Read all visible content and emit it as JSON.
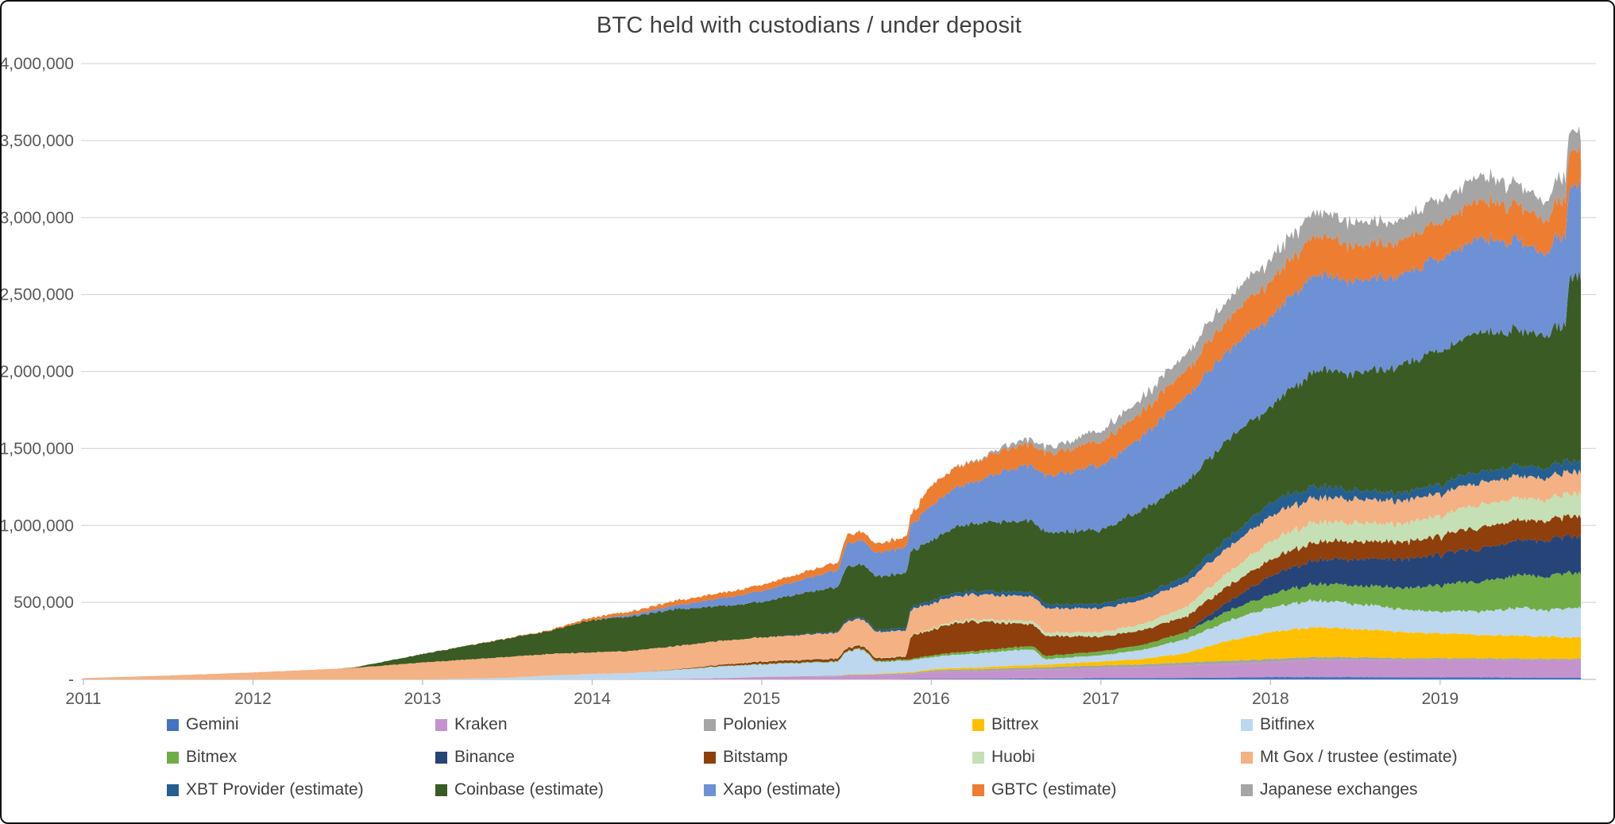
{
  "title": "BTC held with custodians / under deposit",
  "chart_data": {
    "type": "area",
    "stacked": true,
    "title": "BTC held with custodians / under deposit",
    "unit": "BTC (values stored in thousands of BTC)",
    "grid": true,
    "legend_position": "bottom",
    "legend_columns": 5,
    "xlabel": "",
    "ylabel": "",
    "xlim": [
      2011.0,
      2019.83
    ],
    "ylim": [
      0,
      4000000
    ],
    "x_ticks": [
      "2011",
      "2012",
      "2013",
      "2014",
      "2015",
      "2016",
      "2017",
      "2018",
      "2019"
    ],
    "x_tick_values": [
      2011,
      2012,
      2013,
      2014,
      2015,
      2016,
      2017,
      2018,
      2019
    ],
    "y_ticks": [
      {
        "value": 0,
        "label": "-"
      },
      {
        "value": 500,
        "label": "500,000"
      },
      {
        "value": 1000,
        "label": "1,000,000"
      },
      {
        "value": 1500,
        "label": "1,500,000"
      },
      {
        "value": 2000,
        "label": "2,000,000"
      },
      {
        "value": 2500,
        "label": "2,500,000"
      },
      {
        "value": 3000,
        "label": "3,000,000"
      },
      {
        "value": 3500,
        "label": "3,500,000"
      },
      {
        "value": 4000,
        "label": "4,000,000"
      }
    ],
    "dates": [
      2011.0,
      2011.5,
      2012.0,
      2012.5,
      2012.6,
      2013.0,
      2013.5,
      2013.75,
      2014.0,
      2014.2,
      2014.5,
      2014.75,
      2015.0,
      2015.25,
      2015.45,
      2015.5,
      2015.6,
      2015.67,
      2015.75,
      2015.85,
      2015.88,
      2016.0,
      2016.17,
      2016.3,
      2016.5,
      2016.6,
      2016.67,
      2017.0,
      2017.25,
      2017.5,
      2017.75,
      2018.0,
      2018.25,
      2018.5,
      2018.75,
      2019.0,
      2019.25,
      2019.5,
      2019.62,
      2019.7,
      2019.74,
      2019.76,
      2019.83
    ],
    "series": [
      {
        "name": "Gemini",
        "color": "#4472C4",
        "noise": 0.05,
        "values": [
          0,
          0,
          0,
          0,
          0,
          0,
          0,
          0,
          0,
          0,
          0,
          0,
          0,
          0,
          0,
          0,
          0,
          0,
          0,
          2,
          2,
          3,
          4,
          4,
          5,
          5,
          5,
          8,
          9,
          10,
          12,
          15,
          15,
          15,
          14,
          13,
          13,
          12,
          12,
          12,
          12,
          12,
          12
        ]
      },
      {
        "name": "Kraken",
        "color": "#C493CE",
        "noise": 0.03,
        "values": [
          0,
          0,
          0,
          0,
          0,
          0,
          0,
          0,
          0,
          0,
          3,
          8,
          15,
          18,
          20,
          25,
          28,
          28,
          30,
          32,
          33,
          45,
          48,
          50,
          55,
          57,
          58,
          65,
          70,
          80,
          88,
          95,
          110,
          112,
          112,
          115,
          115,
          115,
          113,
          113,
          113,
          113,
          115
        ]
      },
      {
        "name": "Poloniex",
        "color": "#A5A5A5",
        "noise": 0.1,
        "values": [
          0,
          0,
          0,
          0,
          0,
          0,
          0,
          0,
          0,
          0,
          0,
          0,
          2,
          3,
          4,
          5,
          5,
          5,
          6,
          6,
          6,
          10,
          12,
          13,
          15,
          15,
          16,
          18,
          19,
          20,
          21,
          22,
          20,
          16,
          13,
          10,
          9,
          8,
          8,
          8,
          8,
          8,
          8
        ]
      },
      {
        "name": "Bittrex",
        "color": "#FFC000",
        "noise": 0.04,
        "values": [
          0,
          0,
          0,
          0,
          0,
          0,
          0,
          0,
          0,
          0,
          0,
          0,
          0,
          0,
          0,
          2,
          3,
          3,
          4,
          5,
          5,
          8,
          10,
          12,
          15,
          16,
          17,
          25,
          35,
          60,
          130,
          175,
          195,
          185,
          170,
          160,
          150,
          148,
          145,
          143,
          142,
          142,
          140
        ]
      },
      {
        "name": "Bitfinex",
        "color": "#BDD7EE",
        "noise": 0.05,
        "values": [
          0,
          0,
          0,
          0,
          0,
          0,
          10,
          25,
          35,
          40,
          60,
          75,
          80,
          85,
          90,
          150,
          160,
          80,
          75,
          78,
          78,
          80,
          88,
          92,
          100,
          100,
          35,
          40,
          60,
          90,
          130,
          160,
          175,
          165,
          150,
          140,
          155,
          185,
          165,
          190,
          190,
          190,
          190
        ]
      },
      {
        "name": "Bitmex",
        "color": "#70AD47",
        "noise": 0.06,
        "values": [
          0,
          0,
          0,
          0,
          0,
          0,
          0,
          0,
          0,
          0,
          2,
          3,
          3,
          4,
          5,
          5,
          6,
          6,
          7,
          8,
          8,
          12,
          15,
          17,
          20,
          21,
          21,
          25,
          32,
          45,
          65,
          85,
          105,
          120,
          135,
          170,
          195,
          215,
          220,
          225,
          228,
          228,
          230
        ]
      },
      {
        "name": "Binance",
        "color": "#264478",
        "noise": 0.05,
        "values": [
          0,
          0,
          0,
          0,
          0,
          0,
          0,
          0,
          0,
          0,
          0,
          0,
          0,
          0,
          0,
          0,
          0,
          0,
          0,
          0,
          0,
          0,
          0,
          0,
          0,
          0,
          0,
          0,
          0,
          0,
          60,
          120,
          155,
          170,
          185,
          200,
          215,
          228,
          232,
          235,
          237,
          237,
          240
        ]
      },
      {
        "name": "Bitstamp",
        "color": "#8F3F0C",
        "noise": 0.06,
        "values": [
          0,
          0,
          0,
          0,
          0,
          0,
          0,
          0,
          0,
          0,
          2,
          8,
          15,
          16,
          17,
          18,
          18,
          18,
          18,
          18,
          155,
          165,
          195,
          185,
          150,
          140,
          130,
          95,
          95,
          100,
          102,
          105,
          120,
          115,
          110,
          120,
          140,
          130,
          128,
          130,
          130,
          130,
          135
        ]
      },
      {
        "name": "Huobi",
        "color": "#C5E0B4",
        "noise": 0.08,
        "values": [
          0,
          0,
          0,
          0,
          0,
          0,
          0,
          0,
          0,
          0,
          0,
          0,
          2,
          2,
          3,
          3,
          3,
          3,
          4,
          4,
          4,
          10,
          13,
          15,
          20,
          21,
          21,
          30,
          40,
          60,
          90,
          120,
          130,
          120,
          115,
          130,
          150,
          140,
          138,
          140,
          142,
          142,
          145
        ]
      },
      {
        "name": "Mt Gox / trustee (estimate)",
        "color": "#F4B183",
        "noise": 0.02,
        "values": [
          8,
          25,
          45,
          70,
          75,
          110,
          135,
          140,
          140,
          142,
          150,
          155,
          155,
          160,
          165,
          170,
          170,
          168,
          168,
          166,
          166,
          163,
          162,
          161,
          160,
          159,
          158,
          155,
          157,
          160,
          163,
          165,
          160,
          155,
          150,
          145,
          143,
          142,
          141,
          141,
          141,
          141,
          141
        ]
      },
      {
        "name": "XBT Provider (estimate)",
        "color": "#255E91",
        "noise": 0.15,
        "values": [
          0,
          0,
          0,
          0,
          0,
          0,
          0,
          0,
          0,
          0,
          0,
          0,
          0,
          5,
          8,
          10,
          12,
          12,
          14,
          15,
          15,
          20,
          22,
          23,
          25,
          25,
          25,
          28,
          32,
          40,
          60,
          85,
          75,
          55,
          50,
          60,
          70,
          65,
          67,
          70,
          71,
          71,
          72
        ]
      },
      {
        "name": "Coinbase (estimate)",
        "color": "#3A5B23",
        "noise": 0.03,
        "values": [
          0,
          0,
          0,
          0,
          3,
          55,
          120,
          150,
          210,
          220,
          240,
          225,
          230,
          270,
          285,
          340,
          345,
          345,
          350,
          360,
          362,
          390,
          435,
          440,
          460,
          465,
          468,
          480,
          555,
          605,
          645,
          620,
          745,
          760,
          820,
          865,
          905,
          870,
          860,
          890,
          860,
          1190,
          1200
        ]
      },
      {
        "name": "Xapo (estimate)",
        "color": "#6E90D4",
        "noise": 0.04,
        "values": [
          0,
          0,
          0,
          0,
          0,
          0,
          0,
          0,
          0,
          10,
          25,
          50,
          70,
          90,
          110,
          150,
          155,
          150,
          160,
          170,
          172,
          230,
          260,
          280,
          350,
          360,
          365,
          420,
          480,
          555,
          580,
          580,
          620,
          600,
          590,
          600,
          610,
          570,
          530,
          580,
          585,
          585,
          590
        ]
      },
      {
        "name": "GBTC (estimate)",
        "color": "#ED7D31",
        "noise": 0.08,
        "values": [
          0,
          0,
          0,
          0,
          0,
          0,
          2,
          5,
          17,
          20,
          30,
          35,
          40,
          45,
          50,
          55,
          58,
          58,
          60,
          65,
          66,
          130,
          135,
          133,
          140,
          141,
          142,
          155,
          160,
          170,
          205,
          235,
          250,
          230,
          220,
          230,
          250,
          225,
          210,
          230,
          232,
          232,
          235
        ]
      },
      {
        "name": "Japanese exchanges",
        "color": "#A5A5A5",
        "noise": 0.12,
        "values": [
          0,
          0,
          0,
          0,
          0,
          0,
          0,
          0,
          0,
          0,
          0,
          0,
          0,
          0,
          0,
          0,
          0,
          0,
          0,
          0,
          0,
          0,
          3,
          8,
          30,
          35,
          38,
          70,
          90,
          110,
          130,
          140,
          160,
          150,
          140,
          150,
          160,
          130,
          120,
          140,
          138,
          138,
          130
        ]
      }
    ]
  },
  "style_hints": {
    "gridline_color": "#D9D9D9",
    "axis_line_color": "#BFBFBF",
    "axis_text_color": "#595959",
    "title_color": "#404040",
    "legend_text_color": "#404040",
    "background": "#FFFFFF"
  }
}
